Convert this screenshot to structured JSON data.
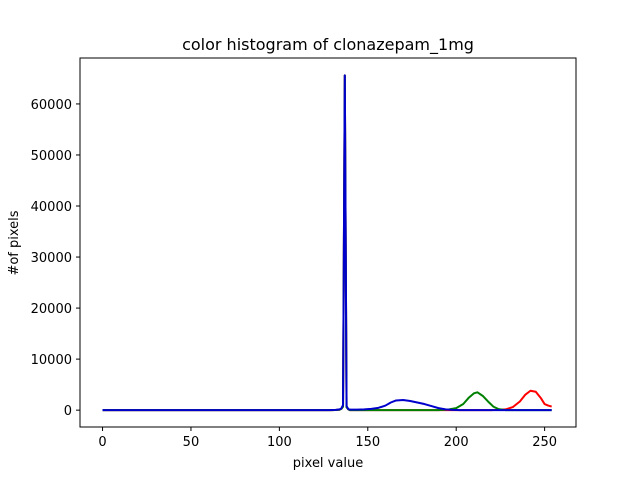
{
  "chart_data": {
    "type": "line",
    "title": "color histogram of clonazepam_1mg",
    "xlabel": "pixel value",
    "ylabel": "#of pixels",
    "xlim": [
      -12.75,
      267.75
    ],
    "ylim": [
      -3300,
      69000
    ],
    "xticks": [
      0,
      50,
      100,
      150,
      200,
      250
    ],
    "yticks": [
      0,
      10000,
      20000,
      30000,
      40000,
      50000,
      60000
    ],
    "grid": false,
    "legend": "none",
    "series": [
      {
        "color": "#ff0000",
        "points": [
          [
            0,
            0
          ],
          [
            130,
            0
          ],
          [
            134,
            80
          ],
          [
            135,
            250
          ],
          [
            136,
            700
          ],
          [
            137,
            65600
          ],
          [
            138,
            600
          ],
          [
            139,
            150
          ],
          [
            140,
            0
          ],
          [
            220,
            0
          ],
          [
            228,
            150
          ],
          [
            232,
            600
          ],
          [
            236,
            1700
          ],
          [
            239,
            3000
          ],
          [
            242,
            3800
          ],
          [
            245,
            3600
          ],
          [
            248,
            2300
          ],
          [
            250,
            1200
          ],
          [
            252,
            900
          ],
          [
            254,
            700
          ]
        ]
      },
      {
        "color": "#008000",
        "points": [
          [
            0,
            0
          ],
          [
            130,
            0
          ],
          [
            134,
            80
          ],
          [
            135,
            250
          ],
          [
            136,
            700
          ],
          [
            137,
            65600
          ],
          [
            138,
            600
          ],
          [
            139,
            150
          ],
          [
            140,
            0
          ],
          [
            190,
            0
          ],
          [
            196,
            150
          ],
          [
            200,
            400
          ],
          [
            204,
            1200
          ],
          [
            207,
            2400
          ],
          [
            210,
            3300
          ],
          [
            212,
            3500
          ],
          [
            215,
            2800
          ],
          [
            218,
            1700
          ],
          [
            221,
            700
          ],
          [
            224,
            200
          ],
          [
            228,
            0
          ],
          [
            254,
            0
          ]
        ]
      },
      {
        "color": "#0000cc",
        "points": [
          [
            0,
            0
          ],
          [
            128,
            0
          ],
          [
            132,
            50
          ],
          [
            134,
            150
          ],
          [
            135,
            300
          ],
          [
            136,
            1000
          ],
          [
            137,
            65600
          ],
          [
            138,
            800
          ],
          [
            139,
            200
          ],
          [
            140,
            100
          ],
          [
            144,
            100
          ],
          [
            148,
            150
          ],
          [
            152,
            250
          ],
          [
            156,
            450
          ],
          [
            160,
            900
          ],
          [
            163,
            1500
          ],
          [
            166,
            1900
          ],
          [
            170,
            2000
          ],
          [
            174,
            1800
          ],
          [
            178,
            1500
          ],
          [
            182,
            1200
          ],
          [
            186,
            800
          ],
          [
            190,
            400
          ],
          [
            194,
            150
          ],
          [
            198,
            50
          ],
          [
            202,
            0
          ],
          [
            254,
            0
          ]
        ]
      }
    ]
  }
}
